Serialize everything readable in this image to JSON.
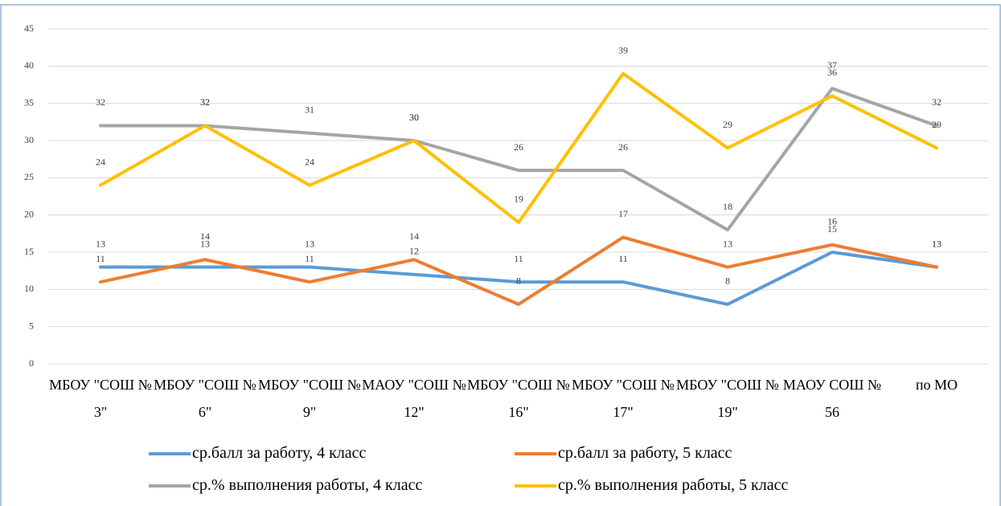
{
  "chart_data": {
    "type": "line",
    "categories": [
      "МБОУ \"СОШ № 3\"",
      "МБОУ \"СОШ № 6\"",
      "МБОУ \"СОШ № 9\"",
      "МАОУ \"СОШ № 12\"",
      "МБОУ \"СОШ № 16\"",
      "МБОУ \"СОШ № 17\"",
      "МБОУ \"СОШ № 19\"",
      "МАОУ СОШ № 56",
      "по МО"
    ],
    "series": [
      {
        "name": "ср.балл за работу, 4 класс",
        "color": "#5b9bd5",
        "values": [
          13,
          13,
          13,
          12,
          11,
          11,
          8,
          15,
          13
        ]
      },
      {
        "name": "ср.балл за работу, 5 класс",
        "color": "#ed7d31",
        "values": [
          11,
          14,
          11,
          14,
          8,
          17,
          13,
          16,
          13
        ]
      },
      {
        "name": "ср.% выполнения работы, 4 класс",
        "color": "#a5a5a5",
        "values": [
          32,
          32,
          31,
          30,
          26,
          26,
          18,
          37,
          32
        ]
      },
      {
        "name": "ср.% выполнения работы, 5 класс",
        "color": "#ffc000",
        "values": [
          24,
          32,
          24,
          30,
          19,
          39,
          29,
          36,
          29
        ]
      }
    ],
    "ylim": [
      0,
      45
    ],
    "yticks": [
      0,
      5,
      10,
      15,
      20,
      25,
      30,
      35,
      40,
      45
    ],
    "grid": true,
    "legend": "bottom"
  }
}
